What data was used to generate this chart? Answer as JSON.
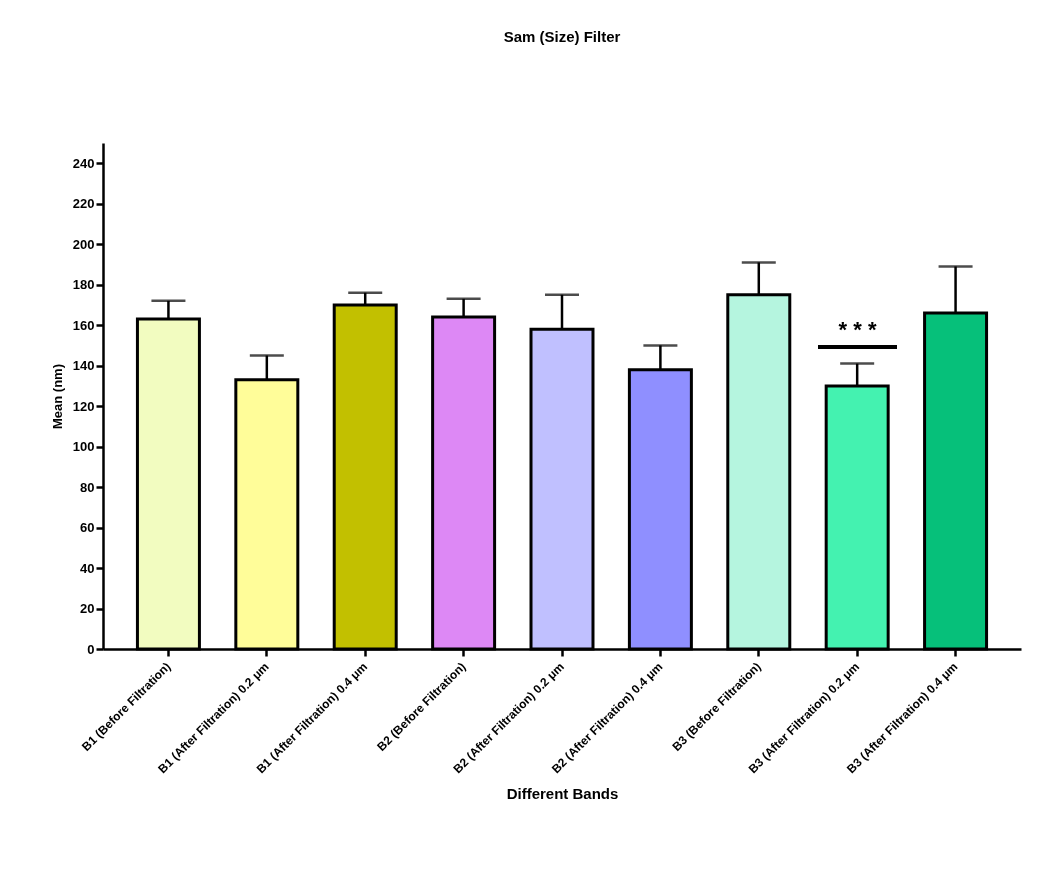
{
  "chart_data": {
    "type": "bar",
    "title": "Sam (Size) Filter",
    "xlabel": "Different Bands",
    "ylabel": "Mean (nm)",
    "categories": [
      "B1 (Before Filtration)",
      "B1 (After Filtration) 0.2 μm",
      "B1 (After Filtration) 0.4 μm",
      "B2 (Before Filtration)",
      "B2 (After Filtration) 0.2 μm",
      "B2 (After Filtration) 0.4 μm",
      "B3 (Before Filtration)",
      "B3 (After Filtration) 0.2 μm",
      "B3 (After Filtration) 0.4 μm"
    ],
    "values": [
      163,
      133,
      170,
      164,
      158,
      138,
      175,
      130,
      166
    ],
    "errors": [
      [
        163,
        172
      ],
      [
        133,
        145
      ],
      [
        170,
        176
      ],
      [
        164,
        173
      ],
      [
        158,
        175
      ],
      [
        138,
        150
      ],
      [
        175,
        191
      ],
      [
        130,
        141
      ],
      [
        166,
        189
      ]
    ],
    "colors": [
      "#f2fcc0",
      "#fffd99",
      "#c2c000",
      "#dd88f5",
      "#c0c0ff",
      "#8f8fff",
      "#b5f5df",
      "#44f2b0",
      "#06c07a"
    ],
    "ylim": [
      0,
      250
    ],
    "yticks": [
      0,
      20,
      40,
      60,
      80,
      100,
      120,
      140,
      160,
      180,
      200,
      220,
      240
    ],
    "annotations": [
      "* * *"
    ],
    "grid": false,
    "legend": false
  }
}
